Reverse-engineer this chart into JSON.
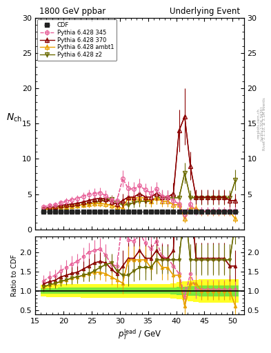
{
  "title_left": "1800 GeV ppbar",
  "title_right": "Underlying Event",
  "ylabel_main": "$N_\\mathrm{ch}$",
  "ylabel_ratio": "Ratio to CDF",
  "xlabel": "$p_T^\\mathrm{lead}$ / GeV",
  "right_text1": "Rivet 3.1.10, ≥ 3.1M events",
  "right_text2": "[arXiv:1306.3436]",
  "right_text3": "mcplots.cern.ch",
  "xlim": [
    15,
    52
  ],
  "ylim_main": [
    0,
    30
  ],
  "ylim_ratio": [
    0.4,
    2.4
  ],
  "yticks_main": [
    0,
    5,
    10,
    15,
    20,
    25,
    30
  ],
  "yticks_ratio": [
    0.5,
    1.0,
    1.5,
    2.0
  ],
  "cdf_x": [
    16.5,
    17.5,
    18.5,
    19.5,
    20.5,
    21.5,
    22.5,
    23.5,
    24.5,
    25.5,
    26.5,
    27.5,
    28.5,
    29.5,
    30.5,
    31.5,
    32.5,
    33.5,
    34.5,
    35.5,
    36.5,
    37.5,
    38.5,
    39.5,
    40.5,
    41.5,
    42.5,
    43.5,
    44.5,
    45.5,
    46.5,
    47.5,
    48.5,
    49.5,
    50.5
  ],
  "cdf_y": [
    2.55,
    2.5,
    2.52,
    2.5,
    2.5,
    2.48,
    2.5,
    2.5,
    2.5,
    2.5,
    2.5,
    2.5,
    2.5,
    2.5,
    2.5,
    2.5,
    2.5,
    2.5,
    2.5,
    2.5,
    2.5,
    2.5,
    2.5,
    2.5,
    2.5,
    2.5,
    2.5,
    2.5,
    2.5,
    2.5,
    2.5,
    2.5,
    2.5,
    2.5,
    2.5
  ],
  "cdf_xerr": 0.5,
  "p345_x": [
    16.5,
    17.5,
    18.5,
    19.5,
    20.5,
    21.5,
    22.5,
    23.5,
    24.5,
    25.5,
    26.5,
    27.5,
    28.5,
    29.5,
    30.5,
    31.5,
    32.5,
    33.5,
    34.5,
    35.5,
    36.5,
    37.5,
    38.5,
    39.5,
    40.5,
    41.5,
    42.5,
    43.5,
    44.5,
    45.5,
    46.5,
    47.5,
    48.5,
    49.5,
    50.5
  ],
  "p345_y": [
    3.2,
    3.4,
    3.5,
    3.8,
    4.0,
    4.2,
    4.4,
    4.7,
    5.0,
    5.1,
    5.2,
    4.8,
    4.2,
    4.1,
    7.2,
    5.8,
    5.7,
    6.2,
    5.6,
    5.2,
    5.7,
    4.7,
    4.6,
    4.1,
    3.6,
    2.1,
    3.6,
    2.6,
    2.6,
    2.6,
    2.6,
    2.6,
    2.6,
    2.6,
    2.6
  ],
  "p345_yerr": [
    0.4,
    0.4,
    0.4,
    0.4,
    0.5,
    0.5,
    0.5,
    0.6,
    0.6,
    0.7,
    0.7,
    0.7,
    0.6,
    0.7,
    1.2,
    1.0,
    1.0,
    1.0,
    0.9,
    0.9,
    1.0,
    0.9,
    0.9,
    0.8,
    0.8,
    0.7,
    0.7,
    0.6,
    0.6,
    0.6,
    0.6,
    0.6,
    0.6,
    0.6,
    0.6
  ],
  "p370_x": [
    16.5,
    17.5,
    18.5,
    19.5,
    20.5,
    21.5,
    22.5,
    23.5,
    24.5,
    25.5,
    26.5,
    27.5,
    28.5,
    29.5,
    30.5,
    31.5,
    32.5,
    33.5,
    34.5,
    35.5,
    36.5,
    37.5,
    38.5,
    39.5,
    40.5,
    41.5,
    42.5,
    43.5,
    44.5,
    45.5,
    46.5,
    47.5,
    48.5,
    49.5,
    50.5
  ],
  "p370_y": [
    3.0,
    3.1,
    3.2,
    3.4,
    3.5,
    3.6,
    3.7,
    3.9,
    4.1,
    4.3,
    4.4,
    4.3,
    3.9,
    3.6,
    4.1,
    4.6,
    4.6,
    5.1,
    4.6,
    4.6,
    5.1,
    4.6,
    4.6,
    5.1,
    14.0,
    16.0,
    9.0,
    4.6,
    4.6,
    4.6,
    4.6,
    4.6,
    4.6,
    4.1,
    4.1
  ],
  "p370_yerr": [
    0.3,
    0.3,
    0.3,
    0.3,
    0.4,
    0.4,
    0.4,
    0.5,
    0.5,
    0.6,
    0.6,
    0.6,
    0.5,
    0.6,
    1.0,
    1.0,
    1.0,
    1.0,
    0.9,
    0.9,
    1.0,
    0.9,
    0.9,
    1.5,
    3.0,
    4.0,
    2.0,
    1.0,
    1.0,
    1.0,
    1.0,
    1.0,
    1.0,
    1.0,
    1.0
  ],
  "pambt_x": [
    16.5,
    17.5,
    18.5,
    19.5,
    20.5,
    21.5,
    22.5,
    23.5,
    24.5,
    25.5,
    26.5,
    27.5,
    28.5,
    29.5,
    30.5,
    31.5,
    32.5,
    33.5,
    34.5,
    35.5,
    36.5,
    37.5,
    38.5,
    39.5,
    40.5,
    41.5,
    42.5,
    43.5,
    44.5,
    45.5,
    46.5,
    47.5,
    48.5,
    49.5,
    50.5
  ],
  "pambt_y": [
    2.8,
    2.9,
    3.0,
    3.1,
    3.2,
    3.3,
    3.4,
    3.5,
    3.6,
    3.7,
    3.7,
    3.6,
    3.4,
    3.2,
    3.0,
    4.5,
    4.5,
    4.5,
    4.5,
    4.0,
    4.5,
    4.0,
    4.0,
    3.5,
    3.5,
    1.5,
    3.0,
    3.0,
    2.5,
    2.5,
    2.5,
    2.5,
    2.5,
    2.5,
    1.5
  ],
  "pambt_yerr": [
    0.3,
    0.3,
    0.3,
    0.3,
    0.3,
    0.4,
    0.4,
    0.4,
    0.5,
    0.5,
    0.5,
    0.5,
    0.5,
    0.5,
    0.7,
    0.9,
    0.9,
    0.9,
    0.9,
    0.8,
    0.9,
    0.8,
    0.8,
    0.8,
    0.8,
    0.5,
    0.7,
    0.7,
    0.6,
    0.6,
    0.6,
    0.6,
    0.6,
    0.6,
    0.5
  ],
  "pz2_x": [
    16.5,
    17.5,
    18.5,
    19.5,
    20.5,
    21.5,
    22.5,
    23.5,
    24.5,
    25.5,
    26.5,
    27.5,
    28.5,
    29.5,
    30.5,
    31.5,
    32.5,
    33.5,
    34.5,
    35.5,
    36.5,
    37.5,
    38.5,
    39.5,
    40.5,
    41.5,
    42.5,
    43.5,
    44.5,
    45.5,
    46.5,
    47.5,
    48.5,
    49.5,
    50.5
  ],
  "pz2_y": [
    2.8,
    2.9,
    3.0,
    3.1,
    3.2,
    3.3,
    3.4,
    3.5,
    3.6,
    3.8,
    4.0,
    4.2,
    4.3,
    3.8,
    3.5,
    3.5,
    3.8,
    4.0,
    4.0,
    4.0,
    4.5,
    4.5,
    4.5,
    4.5,
    4.5,
    8.0,
    4.5,
    4.5,
    4.5,
    4.5,
    4.5,
    4.5,
    4.5,
    4.5,
    7.0
  ],
  "pz2_yerr": [
    0.3,
    0.3,
    0.3,
    0.3,
    0.3,
    0.4,
    0.4,
    0.4,
    0.5,
    0.5,
    0.5,
    0.6,
    0.6,
    0.5,
    0.6,
    0.7,
    0.7,
    0.8,
    0.8,
    0.8,
    0.9,
    0.9,
    0.9,
    0.9,
    0.9,
    1.5,
    1.0,
    1.0,
    1.0,
    1.0,
    1.0,
    1.0,
    1.0,
    1.0,
    1.5
  ],
  "color_cdf": "#222222",
  "color_345": "#e8629a",
  "color_370": "#8b0000",
  "color_ambt": "#e8a000",
  "color_z2": "#6b6b00",
  "band_yellow_lo": [
    0.85,
    0.84,
    0.84,
    0.83,
    0.83,
    0.83,
    0.83,
    0.82,
    0.82,
    0.82,
    0.82,
    0.82,
    0.82,
    0.82,
    0.82,
    0.82,
    0.82,
    0.82,
    0.82,
    0.82,
    0.82,
    0.82,
    0.82,
    0.8,
    0.78,
    0.76,
    0.74,
    0.72,
    0.7,
    0.7,
    0.7,
    0.7,
    0.7,
    0.7,
    0.7
  ],
  "band_yellow_hi": [
    1.15,
    1.16,
    1.16,
    1.17,
    1.17,
    1.17,
    1.17,
    1.18,
    1.18,
    1.18,
    1.18,
    1.18,
    1.18,
    1.18,
    1.18,
    1.18,
    1.18,
    1.18,
    1.18,
    1.18,
    1.18,
    1.18,
    1.18,
    1.2,
    1.22,
    1.24,
    1.26,
    1.28,
    1.3,
    1.3,
    1.3,
    1.3,
    1.3,
    1.3,
    1.3
  ],
  "band_green_lo": [
    0.93,
    0.93,
    0.93,
    0.92,
    0.92,
    0.92,
    0.92,
    0.92,
    0.92,
    0.92,
    0.92,
    0.92,
    0.92,
    0.92,
    0.92,
    0.92,
    0.92,
    0.92,
    0.92,
    0.92,
    0.92,
    0.92,
    0.92,
    0.91,
    0.9,
    0.89,
    0.88,
    0.87,
    0.86,
    0.86,
    0.86,
    0.86,
    0.86,
    0.86,
    0.86
  ],
  "band_green_hi": [
    1.07,
    1.07,
    1.07,
    1.08,
    1.08,
    1.08,
    1.08,
    1.08,
    1.08,
    1.08,
    1.08,
    1.08,
    1.08,
    1.08,
    1.08,
    1.08,
    1.08,
    1.08,
    1.08,
    1.08,
    1.08,
    1.08,
    1.08,
    1.09,
    1.1,
    1.11,
    1.12,
    1.13,
    1.14,
    1.14,
    1.14,
    1.14,
    1.14,
    1.14,
    1.14
  ]
}
